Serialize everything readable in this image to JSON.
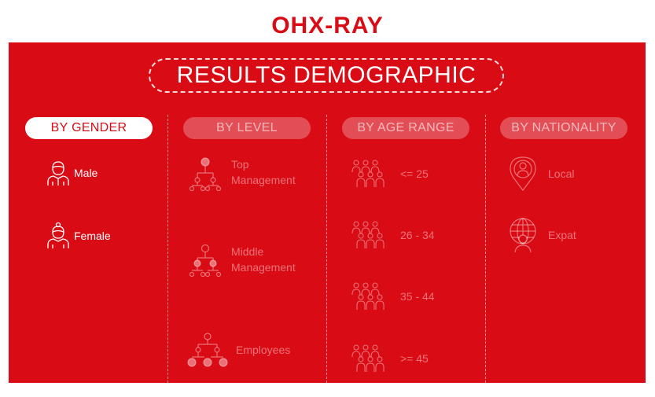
{
  "brand": {
    "name": "OHX-RAY"
  },
  "title": "RESULTS DEMOGRAPHIC",
  "categories": {
    "gender": {
      "label": "BY GENDER",
      "items": [
        {
          "label": "Male",
          "icon": "male-person-icon"
        },
        {
          "label": "Female",
          "icon": "female-person-icon"
        }
      ]
    },
    "level": {
      "label": "BY LEVEL",
      "items": [
        {
          "line1": "Top",
          "line2": "Management",
          "icon": "org-chart-top-icon"
        },
        {
          "line1": "Middle",
          "line2": "Management",
          "icon": "org-chart-middle-icon"
        },
        {
          "label": "Employees",
          "icon": "org-chart-employees-icon"
        }
      ]
    },
    "age": {
      "label": "BY AGE RANGE",
      "items": [
        {
          "label": "<= 25",
          "icon": "people-group-icon"
        },
        {
          "label": "26 - 34",
          "icon": "people-group-icon"
        },
        {
          "label": "35 - 44",
          "icon": "people-group-icon"
        },
        {
          "label": ">= 45",
          "icon": "people-group-icon"
        }
      ]
    },
    "nationality": {
      "label": "BY NATIONALITY",
      "items": [
        {
          "label": "Local",
          "icon": "location-person-icon"
        },
        {
          "label": "Expat",
          "icon": "globe-person-icon"
        }
      ]
    }
  },
  "colors": {
    "brand_red": "#d90b15",
    "white": "#ffffff"
  }
}
